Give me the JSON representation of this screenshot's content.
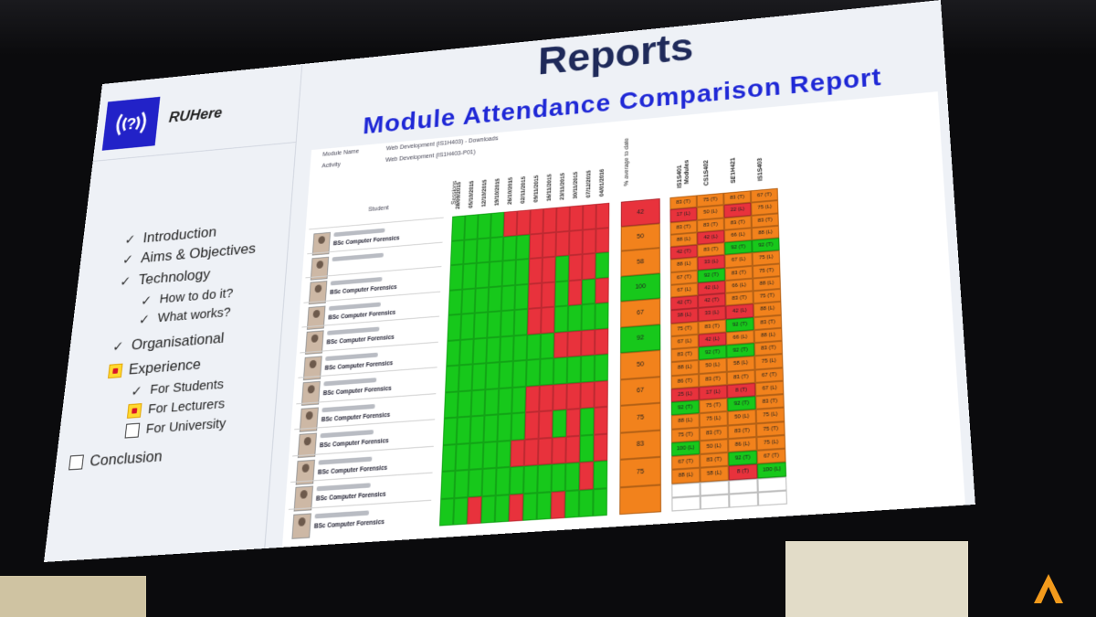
{
  "slide": {
    "app_name": "RUHere",
    "title": "Reports",
    "subtitle": "Module Attendance Comparison Report",
    "menu": [
      {
        "label": "Introduction",
        "mark": "check",
        "level": 1
      },
      {
        "label": "Aims & Objectives",
        "mark": "check",
        "level": 1
      },
      {
        "label": "Technology",
        "mark": "check",
        "level": 1
      },
      {
        "label": "How to do it?",
        "mark": "check",
        "level": 2
      },
      {
        "label": "What works?",
        "mark": "check",
        "level": 2
      },
      {
        "label": "Organisational",
        "mark": "check",
        "level": 1
      },
      {
        "label": "Experience",
        "mark": "box-active",
        "level": 1
      },
      {
        "label": "For Students",
        "mark": "check",
        "level": 2
      },
      {
        "label": "For Lecturers",
        "mark": "box-active",
        "level": 2
      },
      {
        "label": "For University",
        "mark": "box",
        "level": 2
      },
      {
        "label": "Conclusion",
        "mark": "box",
        "level": 0
      }
    ]
  },
  "report": {
    "module_name_label": "Module Name",
    "activity_label": "Activity",
    "module_name_value": "Web Development (IS1H403) - Downloads",
    "activity_value": "Web Development (IS1H403-P01)",
    "student_header": "Student",
    "sessions_header": "Sessions",
    "pct_header": "% average to date",
    "modules_header": "Modules",
    "dates": [
      "28/09/2015",
      "05/10/2015",
      "12/10/2015",
      "19/10/2015",
      "26/10/2015",
      "02/11/2015",
      "09/11/2015",
      "16/11/2015",
      "23/11/2015",
      "30/11/2015",
      "07/12/2015",
      "04/01/2016"
    ],
    "module_codes": [
      "IS1S401",
      "CS1S402",
      "SE1H421",
      "IS1S403"
    ],
    "students": [
      {
        "course": "BSc Computer Forensics",
        "pct": "42",
        "pct_status": "red",
        "attendance": [
          "g",
          "g",
          "g",
          "g",
          "r",
          "r",
          "r",
          "r",
          "r",
          "r",
          "r",
          "r"
        ],
        "modules": [
          "83 (T)",
          "75 (T)",
          "83 (T)",
          "67 (T)",
          "17 (L)",
          "50 (L)",
          "22 (L)",
          "75 (L)"
        ]
      },
      {
        "course": "",
        "pct": "50",
        "pct_status": "orange",
        "attendance": [
          "g",
          "g",
          "g",
          "g",
          "g",
          "g",
          "r",
          "r",
          "r",
          "r",
          "r",
          "r"
        ],
        "modules": [
          "83 (T)",
          "83 (T)",
          "83 (T)",
          "83 (T)",
          "88 (L)",
          "42 (L)",
          "66 (L)",
          "88 (L)"
        ]
      },
      {
        "course": "BSc Computer Forensics",
        "pct": "58",
        "pct_status": "orange",
        "attendance": [
          "g",
          "g",
          "g",
          "g",
          "g",
          "g",
          "r",
          "r",
          "g",
          "r",
          "r",
          "g"
        ],
        "modules": [
          "42 (T)",
          "83 (T)",
          "92 (T)",
          "92 (T)",
          "88 (L)",
          "33 (L)",
          "67 (L)",
          "75 (L)"
        ]
      },
      {
        "course": "BSc Computer Forensics",
        "pct": "100",
        "pct_status": "green",
        "attendance": [
          "g",
          "g",
          "g",
          "g",
          "g",
          "g",
          "r",
          "r",
          "g",
          "r",
          "g",
          "r"
        ],
        "modules": [
          "67 (T)",
          "92 (T)",
          "83 (T)",
          "75 (T)",
          "67 (L)",
          "42 (L)",
          "66 (L)",
          "88 (L)"
        ]
      },
      {
        "course": "BSc Computer Forensics",
        "pct": "67",
        "pct_status": "orange",
        "attendance": [
          "g",
          "g",
          "g",
          "g",
          "g",
          "g",
          "r",
          "r",
          "g",
          "g",
          "g",
          "g"
        ],
        "modules": [
          "42 (T)",
          "42 (T)",
          "83 (T)",
          "75 (T)",
          "38 (L)",
          "33 (L)",
          "42 (L)",
          "88 (L)"
        ]
      },
      {
        "course": "BSc Computer Forensics",
        "pct": "92",
        "pct_status": "green",
        "attendance": [
          "g",
          "g",
          "g",
          "g",
          "g",
          "g",
          "g",
          "g",
          "r",
          "r",
          "r",
          "r"
        ],
        "modules": [
          "75 (T)",
          "83 (T)",
          "92 (T)",
          "83 (T)",
          "67 (L)",
          "42 (L)",
          "66 (L)",
          "88 (L)"
        ]
      },
      {
        "course": "BSc Computer Forensics",
        "pct": "50",
        "pct_status": "orange",
        "attendance": [
          "g",
          "g",
          "g",
          "g",
          "g",
          "g",
          "g",
          "g",
          "g",
          "g",
          "g",
          "g"
        ],
        "modules": [
          "83 (T)",
          "92 (T)",
          "92 (T)",
          "83 (T)",
          "88 (L)",
          "50 (L)",
          "58 (L)",
          "75 (L)"
        ]
      },
      {
        "course": "BSc Computer Forensics",
        "pct": "67",
        "pct_status": "orange",
        "attendance": [
          "g",
          "g",
          "g",
          "g",
          "g",
          "g",
          "r",
          "r",
          "r",
          "r",
          "r",
          "r"
        ],
        "modules": [
          "86 (T)",
          "83 (T)",
          "83 (T)",
          "67 (T)",
          "25 (L)",
          "17 (L)",
          "8 (T)",
          "67 (L)"
        ]
      },
      {
        "course": "BSc Computer Forensics",
        "pct": "75",
        "pct_status": "orange",
        "attendance": [
          "g",
          "g",
          "g",
          "g",
          "g",
          "g",
          "r",
          "r",
          "g",
          "r",
          "g",
          "r"
        ],
        "modules": [
          "92 (T)",
          "75 (T)",
          "92 (T)",
          "83 (T)",
          "88 (L)",
          "75 (L)",
          "50 (L)",
          "75 (L)"
        ]
      },
      {
        "course": "BSc Computer Forensics",
        "pct": "83",
        "pct_status": "orange",
        "attendance": [
          "g",
          "g",
          "g",
          "g",
          "g",
          "r",
          "r",
          "r",
          "r",
          "r",
          "g",
          "r"
        ],
        "modules": [
          "75 (T)",
          "83 (T)",
          "83 (T)",
          "75 (T)",
          "100 (L)",
          "50 (L)",
          "86 (L)",
          "75 (L)"
        ]
      },
      {
        "course": "BSc Computer Forensics",
        "pct": "75",
        "pct_status": "orange",
        "attendance": [
          "g",
          "g",
          "g",
          "g",
          "g",
          "g",
          "g",
          "g",
          "g",
          "g",
          "r",
          "g"
        ],
        "modules": [
          "67 (T)",
          "83 (T)",
          "92 (T)",
          "67 (T)",
          "88 (L)",
          "58 (L)",
          "8 (T)",
          "100 (L)"
        ]
      },
      {
        "course": "BSc Computer Forensics",
        "pct": "",
        "pct_status": "orange",
        "attendance": [
          "g",
          "g",
          "r",
          "g",
          "g",
          "r",
          "g",
          "g",
          "r",
          "g",
          "g",
          "g"
        ],
        "modules": [
          "",
          "",
          "",
          "",
          "",
          "",
          "",
          ""
        ]
      }
    ]
  },
  "colors": {
    "present": "#17c81b",
    "absent": "#e8323c",
    "orange": "#f2821c",
    "title": "#1f2a5a",
    "subtitle": "#1f28d6",
    "logo_bg": "#2222c8"
  }
}
